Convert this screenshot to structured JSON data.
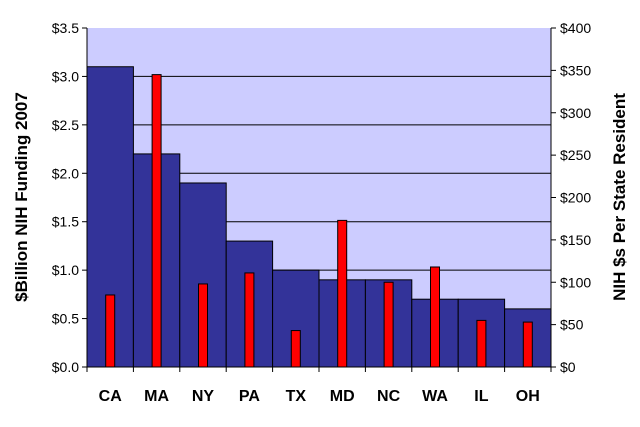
{
  "chart_data": {
    "type": "bar",
    "title": "",
    "categories": [
      "CA",
      "MA",
      "NY",
      "PA",
      "TX",
      "MD",
      "NC",
      "WA",
      "IL",
      "OH"
    ],
    "ylabel": "$Billion NIH Funding 2007",
    "y2label": "NIH $s Per State Resident",
    "ylim": [
      0,
      3.5
    ],
    "y2lim": [
      0,
      400
    ],
    "yticks": [
      "$0.0",
      "$0.5",
      "$1.0",
      "$1.5",
      "$2.0",
      "$2.5",
      "$3.0",
      "$3.5"
    ],
    "y2ticks": [
      "$0",
      "$50",
      "$100",
      "$150",
      "$200",
      "$250",
      "$300",
      "$350",
      "$400"
    ],
    "grid": true,
    "legend": "none",
    "series": [
      {
        "axis": "left",
        "color": "#333399",
        "values": [
          3.1,
          2.2,
          1.9,
          1.3,
          1.0,
          0.9,
          0.9,
          0.7,
          0.7,
          0.6
        ]
      },
      {
        "axis": "right",
        "color": "#ff0000",
        "values": [
          85,
          345,
          98,
          111,
          43,
          173,
          100,
          118,
          55,
          53
        ]
      }
    ],
    "plot_background": "#ccccff"
  }
}
